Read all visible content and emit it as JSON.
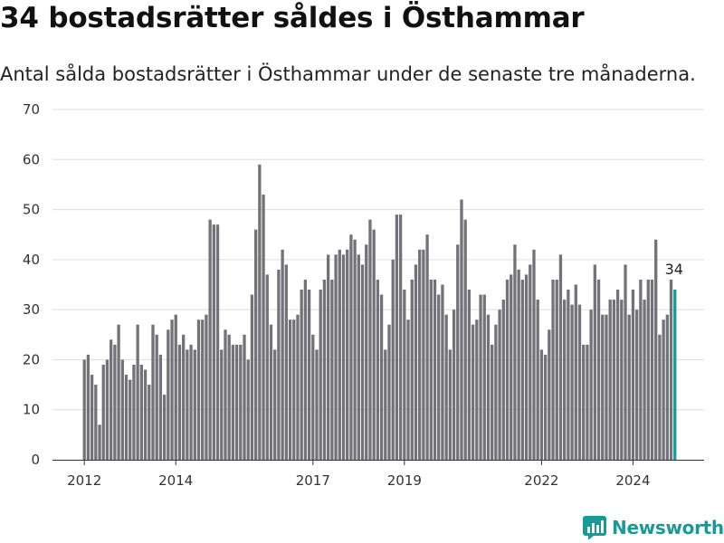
{
  "brand": {
    "name": "Newsworthy",
    "color": "#1a9a96"
  },
  "chart_data": {
    "type": "bar",
    "title": "34 bostadsrätter såldes i Östhammar",
    "subtitle": "Antal sålda bostadsrätter i Östhammar under de senaste tre månaderna.",
    "xlabel": "",
    "ylabel": "",
    "ylim": [
      0,
      70
    ],
    "yticks": [
      0,
      10,
      20,
      30,
      40,
      50,
      60,
      70
    ],
    "xticks": [
      {
        "label": "2012",
        "date": "2012-01"
      },
      {
        "label": "2014",
        "date": "2014-01"
      },
      {
        "label": "2017",
        "date": "2017-01"
      },
      {
        "label": "2019",
        "date": "2019-01"
      },
      {
        "label": "2022",
        "date": "2022-01"
      },
      {
        "label": "2024",
        "date": "2024-01"
      }
    ],
    "grid": true,
    "bar_color": "#737278",
    "highlight_color": "#1a9a96",
    "start_month": "2012-01",
    "values": [
      20,
      21,
      17,
      15,
      7,
      19,
      20,
      24,
      23,
      27,
      20,
      17,
      16,
      19,
      27,
      19,
      18,
      15,
      27,
      25,
      21,
      13,
      26,
      28,
      29,
      23,
      25,
      22,
      23,
      22,
      28,
      28,
      29,
      48,
      47,
      47,
      22,
      26,
      25,
      23,
      23,
      23,
      25,
      20,
      33,
      46,
      59,
      53,
      37,
      27,
      22,
      38,
      42,
      39,
      28,
      28,
      29,
      34,
      36,
      34,
      25,
      22,
      34,
      36,
      41,
      36,
      41,
      42,
      41,
      42,
      45,
      44,
      41,
      39,
      43,
      48,
      46,
      36,
      33,
      22,
      27,
      40,
      49,
      49,
      34,
      28,
      36,
      39,
      42,
      42,
      45,
      36,
      36,
      33,
      35,
      29,
      22,
      30,
      43,
      52,
      48,
      34,
      27,
      28,
      33,
      33,
      29,
      23,
      27,
      30,
      32,
      36,
      37,
      43,
      38,
      36,
      37,
      39,
      42,
      32,
      22,
      21,
      26,
      36,
      36,
      41,
      32,
      34,
      31,
      35,
      31,
      23,
      23,
      30,
      39,
      36,
      29,
      29,
      32,
      32,
      34,
      32,
      39,
      29,
      34,
      30,
      36,
      32,
      36,
      36,
      44,
      25,
      28,
      29,
      36,
      34
    ],
    "highlight_last": true,
    "last_label": "34"
  }
}
